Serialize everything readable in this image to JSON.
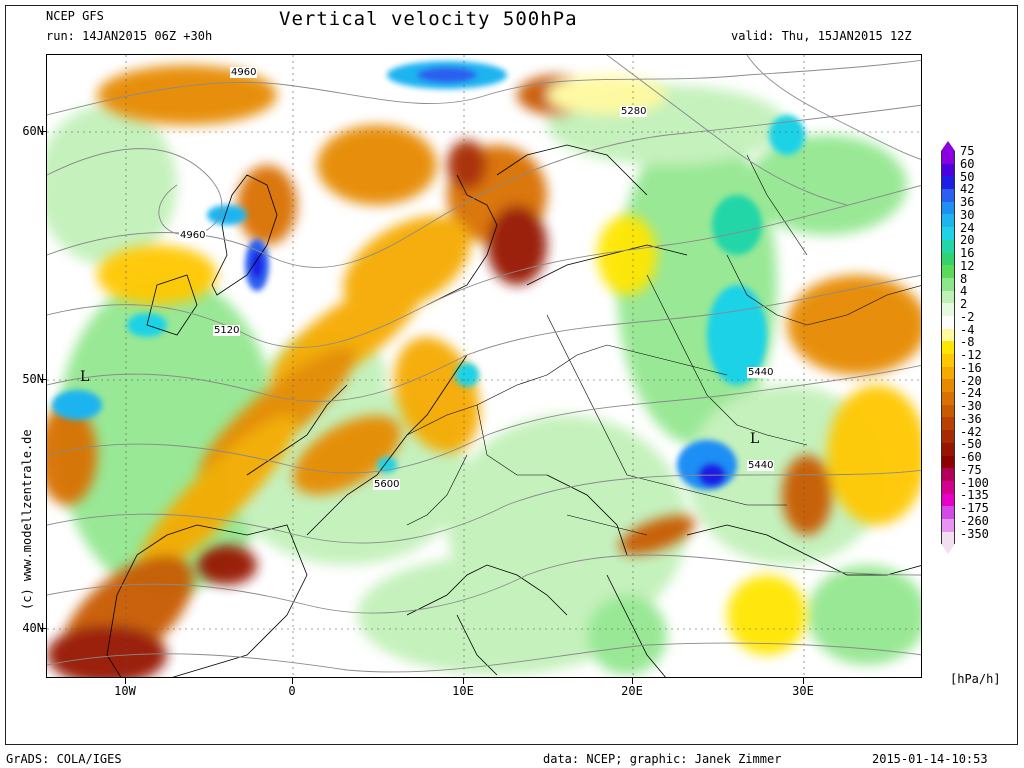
{
  "header": {
    "model": "NCEP GFS",
    "run": "run: 14JAN2015 06Z +30h",
    "title": "Vertical velocity 500hPa",
    "valid": "valid: Thu, 15JAN2015 12Z"
  },
  "axes": {
    "lat_labels": [
      "60N",
      "50N",
      "40N"
    ],
    "lon_labels": [
      "10W",
      "0",
      "10E",
      "20E",
      "30E"
    ]
  },
  "credit": "(c) www.modellzentrale.de",
  "contour_labels": [
    "4960",
    "4960",
    "5280",
    "5120",
    "5440",
    "5440",
    "5600"
  ],
  "low_markers": [
    "L",
    "L"
  ],
  "legend": {
    "unit": "[hPa/h]",
    "entries": [
      {
        "label": "75",
        "color": "#8a00e0"
      },
      {
        "label": "60",
        "color": "#4b00e0"
      },
      {
        "label": "50",
        "color": "#1e1ee6"
      },
      {
        "label": "42",
        "color": "#2a5ff0"
      },
      {
        "label": "36",
        "color": "#1f8ef5"
      },
      {
        "label": "30",
        "color": "#1fb4f0"
      },
      {
        "label": "24",
        "color": "#1fd2e6"
      },
      {
        "label": "20",
        "color": "#22d6a8"
      },
      {
        "label": "16",
        "color": "#33d170"
      },
      {
        "label": "12",
        "color": "#5adc5a"
      },
      {
        "label": "8",
        "color": "#8ee68a"
      },
      {
        "label": "4",
        "color": "#bff0b6"
      },
      {
        "label": "2",
        "color": "#e6fadf"
      },
      {
        "label": "-2",
        "color": "#ffffff"
      },
      {
        "label": "-4",
        "color": "#fff9a0"
      },
      {
        "label": "-8",
        "color": "#ffe600"
      },
      {
        "label": "-12",
        "color": "#ffc800"
      },
      {
        "label": "-16",
        "color": "#f5aa00"
      },
      {
        "label": "-20",
        "color": "#e68a00"
      },
      {
        "label": "-24",
        "color": "#d97000"
      },
      {
        "label": "-30",
        "color": "#c85a00"
      },
      {
        "label": "-36",
        "color": "#b84000"
      },
      {
        "label": "-42",
        "color": "#a82a00"
      },
      {
        "label": "-50",
        "color": "#961400"
      },
      {
        "label": "-60",
        "color": "#8c0000"
      },
      {
        "label": "-75",
        "color": "#b4005a"
      },
      {
        "label": "-100",
        "color": "#d2008c"
      },
      {
        "label": "-135",
        "color": "#e600c8"
      },
      {
        "label": "-175",
        "color": "#d24be6"
      },
      {
        "label": "-260",
        "color": "#e696f0"
      },
      {
        "label": "-350",
        "color": "#f2e0f2"
      }
    ]
  },
  "footer": {
    "left": "GrADS: COLA/IGES",
    "center": "data: NCEP; graphic: Janek Zimmer",
    "right": "2015-01-14-10:53"
  }
}
